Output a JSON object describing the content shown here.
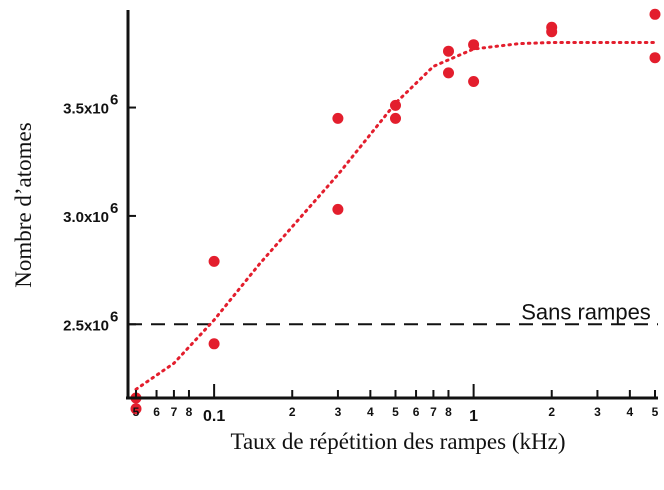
{
  "chart_data": {
    "type": "scatter",
    "title": "",
    "xlabel": "Taux de répétition  des rampes (kHz)",
    "ylabel": "Nombre d’atomes",
    "x_scale": "log",
    "xlim": [
      0.05,
      5
    ],
    "ylim": [
      2100000,
      3950000
    ],
    "grid": false,
    "x_ticks": [
      {
        "value": 0.05,
        "label": "5",
        "major": false
      },
      {
        "value": 0.06,
        "label": "6",
        "major": false
      },
      {
        "value": 0.07,
        "label": "7",
        "major": false
      },
      {
        "value": 0.08,
        "label": "8",
        "major": false
      },
      {
        "value": 0.1,
        "label": "0.1",
        "major": true
      },
      {
        "value": 0.2,
        "label": "2",
        "major": false
      },
      {
        "value": 0.3,
        "label": "3",
        "major": false
      },
      {
        "value": 0.4,
        "label": "4",
        "major": false
      },
      {
        "value": 0.5,
        "label": "5",
        "major": false
      },
      {
        "value": 0.6,
        "label": "6",
        "major": false
      },
      {
        "value": 0.7,
        "label": "7",
        "major": false
      },
      {
        "value": 0.8,
        "label": "8",
        "major": false
      },
      {
        "value": 1,
        "label": "1",
        "major": true
      },
      {
        "value": 2,
        "label": "2",
        "major": false
      },
      {
        "value": 3,
        "label": "3",
        "major": false
      },
      {
        "value": 4,
        "label": "4",
        "major": false
      },
      {
        "value": 5,
        "label": "5",
        "major": false
      }
    ],
    "y_ticks": [
      {
        "value": 2500000,
        "mantissa": "2.5x10",
        "exp": "6"
      },
      {
        "value": 3000000,
        "mantissa": "3.0x10",
        "exp": "6"
      },
      {
        "value": 3500000,
        "mantissa": "3.5x10",
        "exp": "6"
      }
    ],
    "series": [
      {
        "color": "#e31e2d",
        "points": [
          {
            "x": 0.05,
            "y": 2160000
          },
          {
            "x": 0.05,
            "y": 2110000
          },
          {
            "x": 0.1,
            "y": 2790000
          },
          {
            "x": 0.1,
            "y": 2410000
          },
          {
            "x": 0.3,
            "y": 3450000
          },
          {
            "x": 0.3,
            "y": 3030000
          },
          {
            "x": 0.5,
            "y": 3510000
          },
          {
            "x": 0.5,
            "y": 3450000
          },
          {
            "x": 0.8,
            "y": 3760000
          },
          {
            "x": 0.8,
            "y": 3660000
          },
          {
            "x": 1,
            "y": 3790000
          },
          {
            "x": 1,
            "y": 3620000
          },
          {
            "x": 2,
            "y": 3870000
          },
          {
            "x": 2,
            "y": 3850000
          },
          {
            "x": 5,
            "y": 3930000
          },
          {
            "x": 5,
            "y": 3730000
          }
        ]
      }
    ],
    "fit_curve": {
      "color": "#e31e2d",
      "style": "dotted",
      "points": [
        {
          "x": 0.05,
          "y": 2200000
        },
        {
          "x": 0.07,
          "y": 2320000
        },
        {
          "x": 0.1,
          "y": 2520000
        },
        {
          "x": 0.15,
          "y": 2780000
        },
        {
          "x": 0.2,
          "y": 2950000
        },
        {
          "x": 0.3,
          "y": 3190000
        },
        {
          "x": 0.5,
          "y": 3520000
        },
        {
          "x": 0.7,
          "y": 3690000
        },
        {
          "x": 1,
          "y": 3770000
        },
        {
          "x": 1.5,
          "y": 3795000
        },
        {
          "x": 2,
          "y": 3800000
        },
        {
          "x": 3,
          "y": 3800000
        },
        {
          "x": 5,
          "y": 3800000
        }
      ]
    },
    "reference_line": {
      "y": 2500000,
      "label": "Sans rampes",
      "color": "#111111",
      "style": "dashed"
    }
  }
}
